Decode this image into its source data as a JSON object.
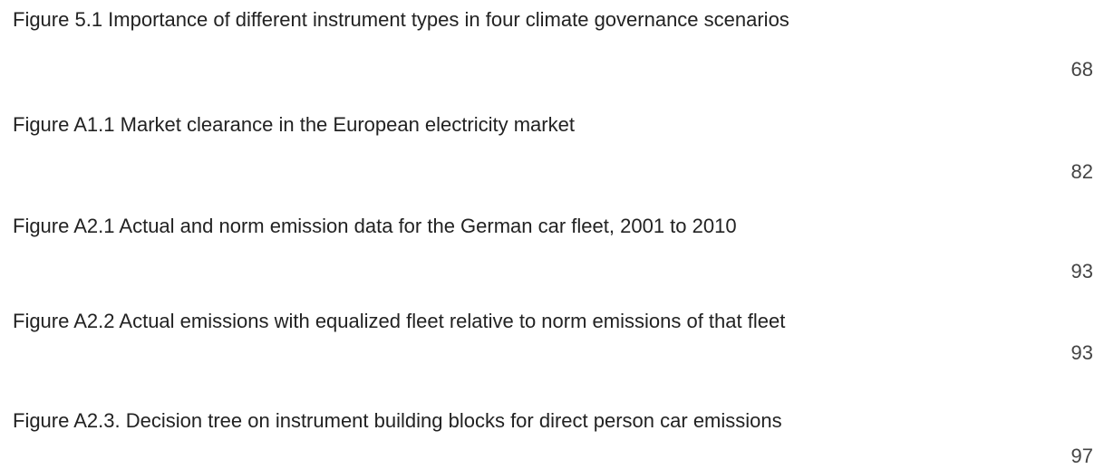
{
  "entries": [
    {
      "title": "Figure 5.1 Importance of different instrument types in four climate governance scenarios",
      "page": "68"
    },
    {
      "title": "Figure A1.1 Market clearance in the European electricity market",
      "page": "82"
    },
    {
      "title": "Figure A2.1 Actual and norm emission data for the German car fleet, 2001 to 2010",
      "page": "93"
    },
    {
      "title": "Figure A2.2 Actual emissions with equalized fleet relative to norm emissions of that fleet",
      "page": "93"
    },
    {
      "title": "Figure A2.3. Decision tree on instrument building blocks for direct person car emissions",
      "page": "97"
    }
  ]
}
